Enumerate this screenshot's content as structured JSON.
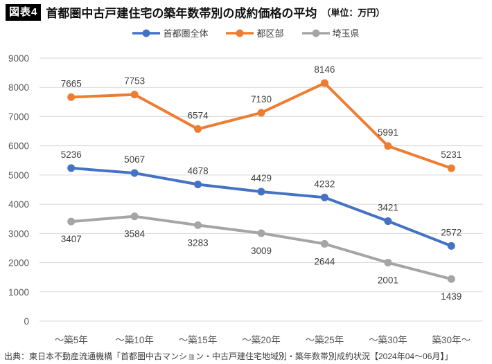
{
  "header": {
    "badge": "図表4",
    "title": "首都圏中古戸建住宅の築年数帯別の成約価格の平均",
    "unit": "（単位：万円）"
  },
  "source": "出典：東日本不動産流通機構「首都圏中古マンション・中古戸建住宅地域別・築年数帯別成約状況【2024年04～06月】」",
  "chart_data": {
    "type": "line",
    "title": "首都圏中古戸建住宅の築年数帯別の成約価格の平均（単位：万円）",
    "categories": [
      "～築5年",
      "～築10年",
      "～築15年",
      "～築20年",
      "～築25年",
      "～築30年",
      "築30年～"
    ],
    "series": [
      {
        "name": "首都圏全体",
        "color": "#4472C4",
        "values": [
          5236,
          5067,
          4678,
          4429,
          4232,
          3421,
          2572
        ],
        "label_position": "above"
      },
      {
        "name": "都区部",
        "color": "#ED7D31",
        "values": [
          7665,
          7753,
          6574,
          7130,
          8146,
          5991,
          5231
        ],
        "label_position": "above"
      },
      {
        "name": "埼玉県",
        "color": "#A5A5A5",
        "values": [
          3407,
          3584,
          3283,
          3009,
          2644,
          2001,
          1439
        ],
        "label_position": "below"
      }
    ],
    "ylim": [
      0,
      9000
    ],
    "ytick_step": 1000,
    "grid": true,
    "legend_position": "top",
    "grid_color": "#D9D9D9",
    "axis_text_color": "#595959",
    "data_label_color": "#404040"
  }
}
